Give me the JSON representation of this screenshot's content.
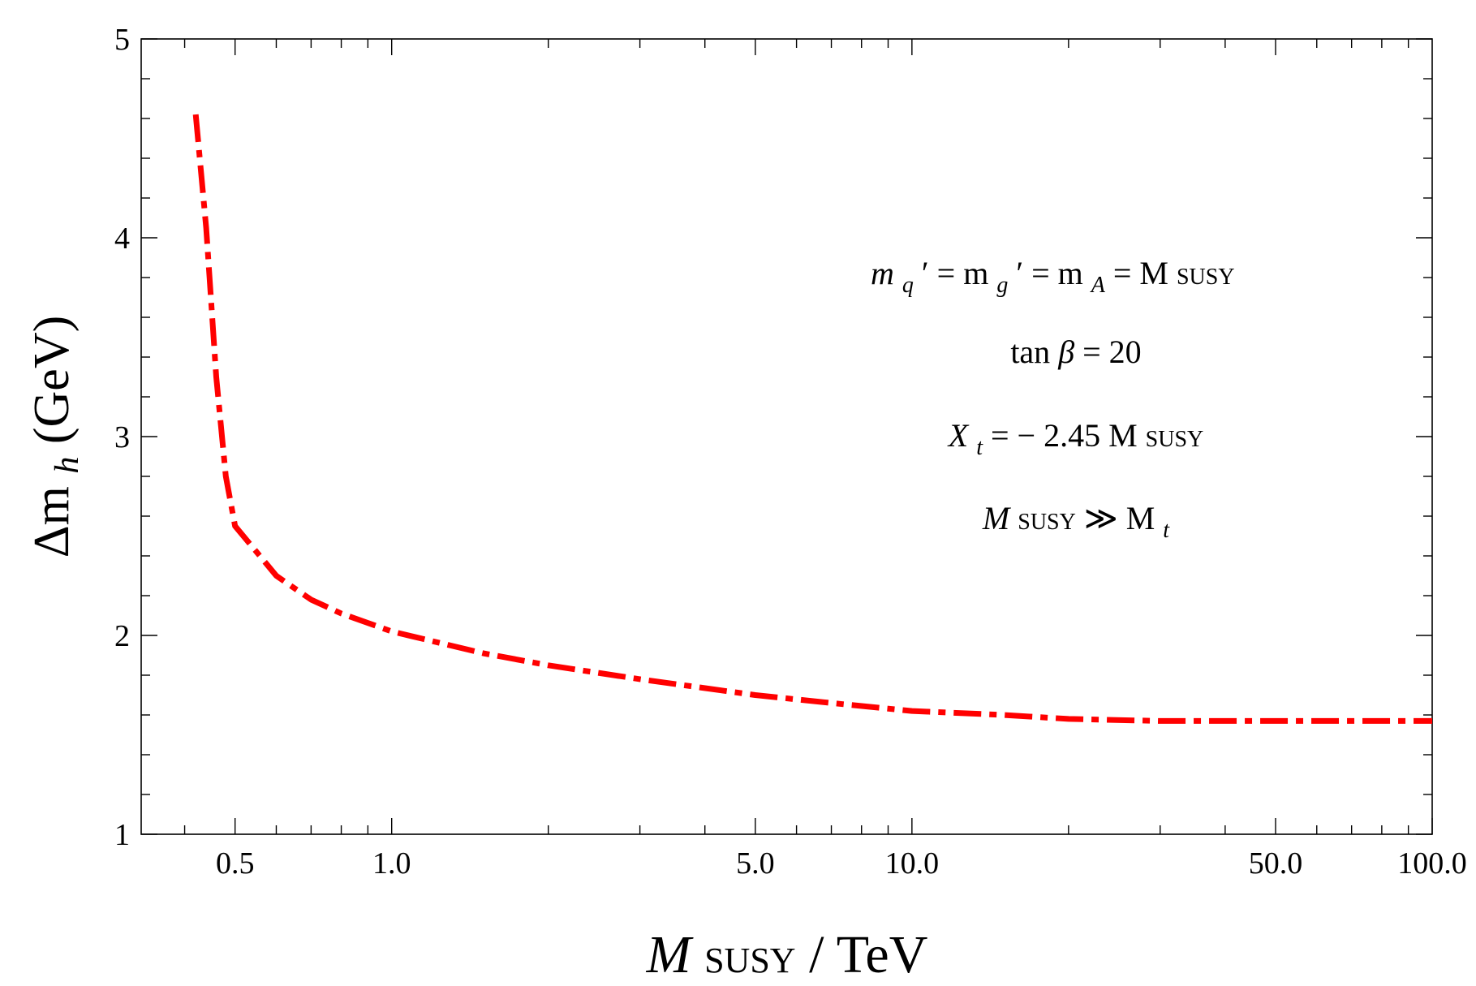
{
  "chart_data": {
    "type": "line",
    "xscale": "log",
    "xlim": [
      0.33,
      100
    ],
    "ylim": [
      1,
      5
    ],
    "x_ticks": [
      {
        "value": 0.5,
        "label": "0.5"
      },
      {
        "value": 1.0,
        "label": "1.0"
      },
      {
        "value": 5.0,
        "label": "5.0"
      },
      {
        "value": 10.0,
        "label": "10.0"
      },
      {
        "value": 50.0,
        "label": "50.0"
      },
      {
        "value": 100.0,
        "label": "100.0"
      }
    ],
    "y_ticks": [
      {
        "value": 1,
        "label": "1"
      },
      {
        "value": 2,
        "label": "2"
      },
      {
        "value": 3,
        "label": "3"
      },
      {
        "value": 4,
        "label": "4"
      },
      {
        "value": 5,
        "label": "5"
      }
    ],
    "xlabel": {
      "main": "M",
      "sub": "SUSY",
      "rest": "/ TeV"
    },
    "ylabel": {
      "delta": "Δm",
      "sub": "h",
      "rest": "(GeV)"
    },
    "series": [
      {
        "name": "delta_mh",
        "color": "#ff0000",
        "style": "dash-dot",
        "x": [
          0.42,
          0.44,
          0.46,
          0.48,
          0.5,
          0.55,
          0.6,
          0.7,
          0.8,
          1.0,
          1.5,
          2.0,
          3.0,
          5.0,
          7.0,
          10.0,
          15.0,
          20.0,
          30.0,
          50.0,
          70.0,
          100.0
        ],
        "y": [
          4.62,
          4.05,
          3.3,
          2.8,
          2.55,
          2.42,
          2.3,
          2.18,
          2.11,
          2.02,
          1.91,
          1.85,
          1.78,
          1.7,
          1.66,
          1.62,
          1.6,
          1.58,
          1.57,
          1.57,
          1.57,
          1.57
        ]
      }
    ],
    "annotations": {
      "line1": {
        "m1": "m",
        "q": "q",
        "eq1": "′ = m",
        "g": "g",
        "eq2": "′ = m",
        "A": "A",
        "eq3": " = M",
        "susy": "SUSY"
      },
      "line2": {
        "tan": "tan",
        "beta": "β",
        "eq": " = 20"
      },
      "line3": {
        "X": "X",
        "t": "t",
        "eq": " = − 2.45  M",
        "susy": "SUSY"
      },
      "line4": {
        "M": "M",
        "susy": "SUSY",
        "gg": " ≫ M",
        "t": "t"
      }
    }
  }
}
